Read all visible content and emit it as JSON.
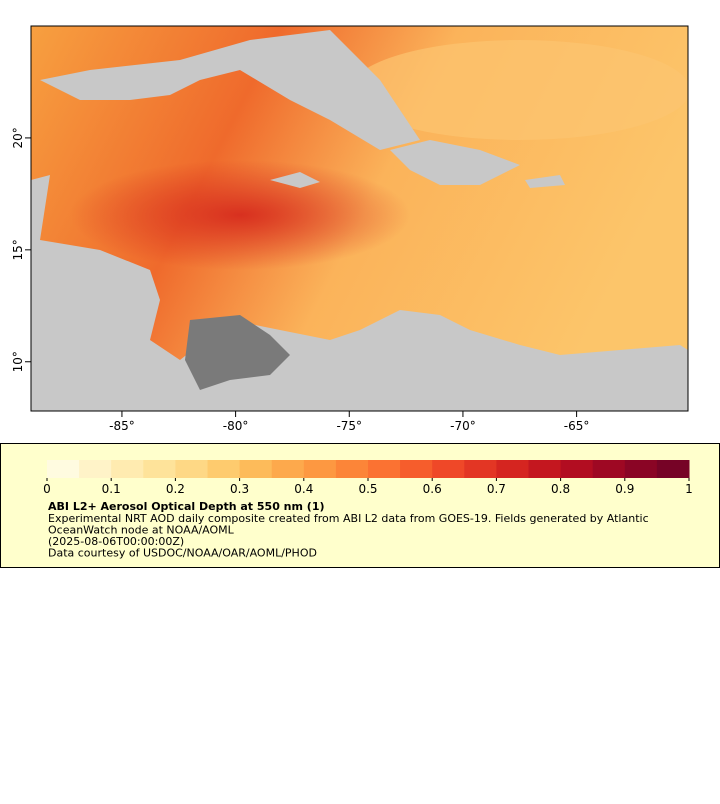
{
  "map": {
    "xlim": [
      -89,
      -60.1
    ],
    "ylim": [
      7.8,
      25
    ],
    "xticks": [
      {
        "value": -85,
        "label": "-85°"
      },
      {
        "value": -80,
        "label": "-80°"
      },
      {
        "value": -75,
        "label": "-75°"
      },
      {
        "value": -70,
        "label": "-70°"
      },
      {
        "value": -65,
        "label": "-65°"
      }
    ],
    "yticks": [
      {
        "value": 10,
        "label": "10°"
      },
      {
        "value": 15,
        "label": "15°"
      },
      {
        "value": 20,
        "label": "20°"
      }
    ]
  },
  "colorbar": {
    "range": [
      0,
      1
    ],
    "ticks": [
      0,
      0.1,
      0.2,
      0.3,
      0.4,
      0.5,
      0.6,
      0.7,
      0.8,
      0.9,
      1
    ],
    "colors": [
      "#fffbe0",
      "#fff3c8",
      "#ffebb0",
      "#fee39a",
      "#fed885",
      "#fecb6e",
      "#fdbb5a",
      "#fda94c",
      "#fd9841",
      "#fc8538",
      "#fb7232",
      "#f65d2c",
      "#ef4828",
      "#e33624",
      "#d52520",
      "#c4171f",
      "#b20d21",
      "#9e0823",
      "#8a0525",
      "#760326"
    ]
  },
  "legend": {
    "title": "ABI L2+ Aerosol Optical Depth at 550 nm (1)",
    "lines": [
      "Experimental NRT AOD daily composite created from ABI L2 data from GOES-19. Fields generated by Atlantic",
      "OceanWatch node at NOAA/AOML",
      "(2025-08-06T00:00:00Z)",
      "Data courtesy of USDOC/NOAA/OAR/AOML/PHOD"
    ]
  }
}
